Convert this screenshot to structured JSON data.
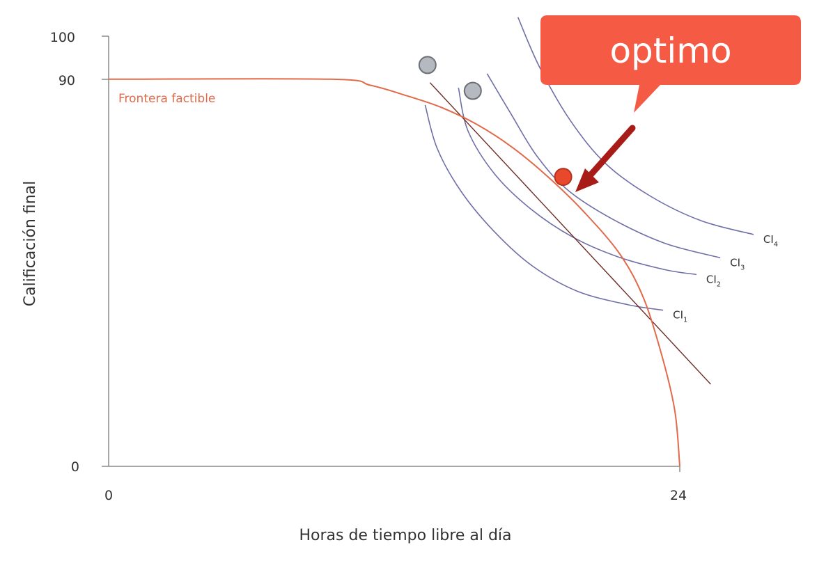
{
  "chart_data": {
    "type": "line",
    "title": "",
    "xlabel": "Horas de tiempo libre al día",
    "ylabel": "Calificación final",
    "xlim": [
      0,
      24
    ],
    "ylim": [
      0,
      100
    ],
    "x_ticks": [
      "0",
      "24"
    ],
    "y_ticks": [
      "0",
      "90",
      "100"
    ],
    "grid": false,
    "frontier": {
      "name": "Frontera factible",
      "color": "#e06a4a",
      "points": [
        [
          0,
          90
        ],
        [
          9.3,
          90
        ],
        [
          11,
          88.6
        ],
        [
          12.5,
          86.2
        ],
        [
          14,
          83.4
        ],
        [
          15.5,
          79.4
        ],
        [
          17,
          74
        ],
        [
          18.5,
          67.1
        ],
        [
          20,
          59
        ],
        [
          21.5,
          49.2
        ],
        [
          22.5,
          38.8
        ],
        [
          23.3,
          24.7
        ],
        [
          23.8,
          12.6
        ],
        [
          24,
          0
        ]
      ]
    },
    "budget_line": {
      "color": "#6b2a22",
      "points": [
        [
          13.5,
          89.2
        ],
        [
          25.3,
          19.1
        ]
      ]
    },
    "indifference_curves": [
      {
        "name": "CI",
        "subscript": "1",
        "points": [
          [
            13.3,
            84
          ],
          [
            13.8,
            74
          ],
          [
            14.8,
            64
          ],
          [
            16.2,
            54.6
          ],
          [
            17.8,
            46.6
          ],
          [
            19.7,
            40.7
          ],
          [
            21.8,
            37.6
          ],
          [
            23.3,
            36.3
          ]
        ]
      },
      {
        "name": "CI",
        "subscript": "2",
        "points": [
          [
            14.7,
            88
          ],
          [
            15.1,
            78
          ],
          [
            16.2,
            68.1
          ],
          [
            17.7,
            60
          ],
          [
            19.5,
            53.3
          ],
          [
            21.4,
            48.7
          ],
          [
            23.4,
            45.7
          ],
          [
            24.7,
            44.6
          ]
        ]
      },
      {
        "name": "CI",
        "subscript": "3",
        "points": [
          [
            15.9,
            91.3
          ],
          [
            16.9,
            82
          ],
          [
            18,
            72.1
          ],
          [
            19.3,
            64.2
          ],
          [
            21.2,
            57.4
          ],
          [
            23.4,
            51.8
          ],
          [
            25.7,
            48.5
          ]
        ]
      },
      {
        "name": "CI",
        "subscript": "4",
        "points": [
          [
            17.2,
            104.4
          ],
          [
            18.1,
            92.9
          ],
          [
            19.4,
            80.4
          ],
          [
            20.9,
            70.3
          ],
          [
            22.8,
            62.7
          ],
          [
            24.9,
            57.1
          ],
          [
            27.1,
            53.9
          ]
        ]
      }
    ],
    "points": [
      {
        "name": "gray-1",
        "x": 13.4,
        "y": 93.3,
        "color": "#b4babf"
      },
      {
        "name": "gray-2",
        "x": 15.3,
        "y": 87.3,
        "color": "#b4babf"
      },
      {
        "name": "optimo",
        "x": 19.1,
        "y": 67.3,
        "color": "#e8492c"
      }
    ],
    "annotation": {
      "text": "optimo",
      "box_color": "#f55a45",
      "arrow_color": "#a81c18"
    }
  }
}
